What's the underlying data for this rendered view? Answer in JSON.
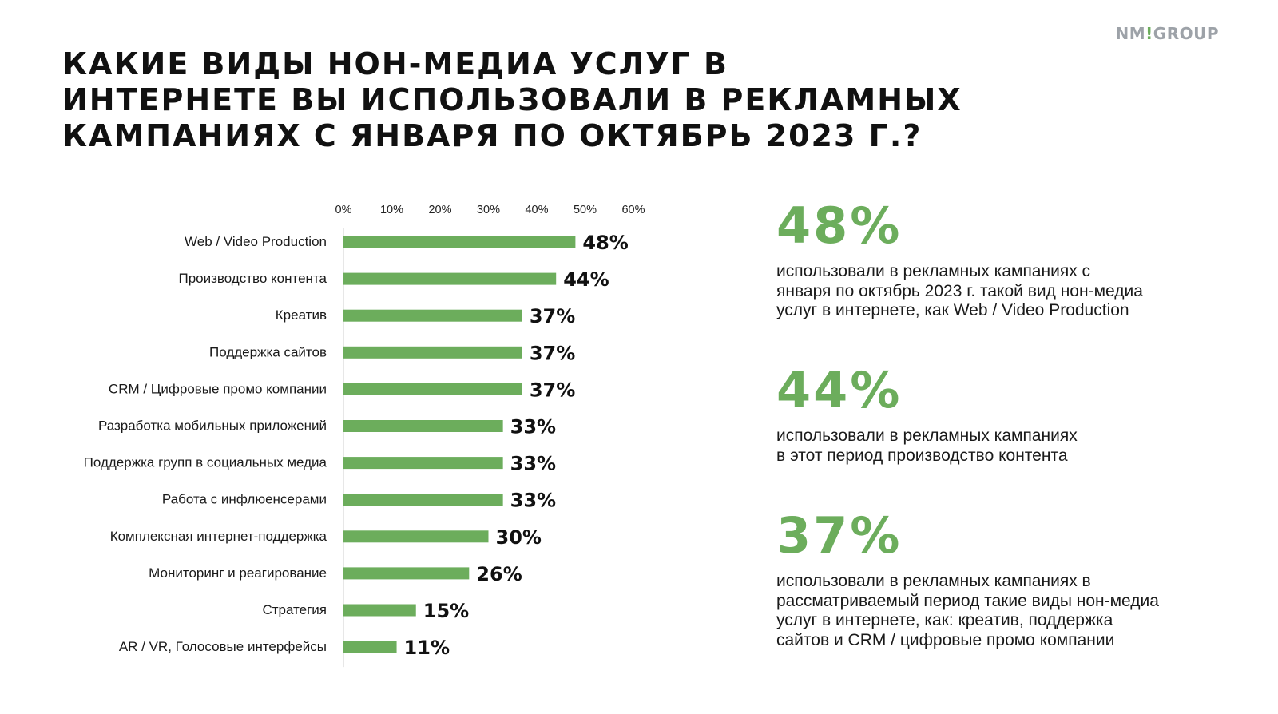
{
  "brand": {
    "name": "NM GROUP",
    "logo_left": "NM",
    "logo_mark": "!",
    "logo_right": "GROUP"
  },
  "title_lines": [
    "КАКИЕ ВИДЫ НОН-МЕДИА УСЛУГ В",
    "ИНТЕРНЕТЕ ВЫ ИСПОЛЬЗОВАЛИ В РЕКЛАМНЫХ",
    "КАМПАНИЯХ С ЯНВАРЯ ПО ОКТЯБРЬ 2023 Г.?"
  ],
  "colors": {
    "bar": "#6cad5c",
    "accent": "#6cad5c",
    "axis": "#cfcfcf",
    "text": "#1a1a1a"
  },
  "chart_data": {
    "type": "bar",
    "orientation": "horizontal",
    "title": "КАКИЕ ВИДЫ НОН-МЕДИА УСЛУГ В ИНТЕРНЕТЕ ВЫ ИСПОЛЬЗОВАЛИ В РЕКЛАМНЫХ КАМПАНИЯХ С ЯНВАРЯ ПО ОКТЯБРЬ 2023 Г.?",
    "categories": [
      "Web / Video Production",
      "Производство контента",
      "Креатив",
      "Поддержка сайтов",
      "CRM / Цифровые промо компании",
      "Разработка мобильных приложений",
      "Поддержка групп в социальных медиа",
      "Работа с инфлюенсерами",
      "Комплексная интернет-поддержка",
      "Мониторинг и реагирование",
      "Стратегия",
      "AR / VR, Голосовые интерфейсы"
    ],
    "values": [
      48,
      44,
      37,
      37,
      37,
      33,
      33,
      33,
      30,
      26,
      15,
      11
    ],
    "value_labels": [
      "48%",
      "44%",
      "37%",
      "37%",
      "37%",
      "33%",
      "33%",
      "33%",
      "30%",
      "26%",
      "15%",
      "11%"
    ],
    "x_ticks": [
      0,
      10,
      20,
      30,
      40,
      50,
      60
    ],
    "x_tick_labels": [
      "0%",
      "10%",
      "20%",
      "30%",
      "40%",
      "50%",
      "60%"
    ],
    "xlim": [
      0,
      60
    ],
    "axis_position": "top",
    "grid": false,
    "legend": "none"
  },
  "highlights": [
    {
      "value": "48%",
      "lines": [
        "использовали в рекламных кампаниях с",
        "января по октябрь 2023 г. такой вид нон-медиа",
        "услуг в интернете, как Web / Video Production"
      ]
    },
    {
      "value": "44%",
      "lines": [
        "использовали в рекламных кампаниях",
        "в этот период производство контента"
      ]
    },
    {
      "value": "37%",
      "lines": [
        "использовали в рекламных кампаниях в",
        "рассматриваемый период такие виды нон-медиа",
        "услуг в интернете, как: креатив, поддержка",
        "сайтов и CRM / цифровые промо компании"
      ]
    }
  ]
}
